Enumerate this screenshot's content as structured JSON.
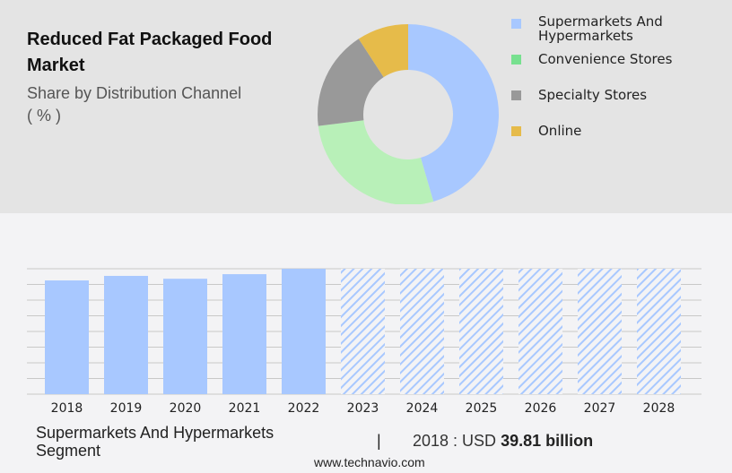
{
  "chart_data": [
    {
      "type": "pie",
      "title": "Reduced Fat Packaged Food Market",
      "subtitle": "Share by Distribution Channel",
      "unit": "( % )",
      "labels": [
        "Supermarkets And Hypermarkets",
        "Convenience Stores",
        "Specialty Stores",
        "Online"
      ],
      "values": [
        45.5,
        27.5,
        17.8,
        9.2
      ],
      "colors": [
        "#a8c8ff",
        "#b8f0b8",
        "#999999",
        "#e6bb4a"
      ],
      "legend_colors": [
        "#a8c8ff",
        "#77e08f",
        "#999999",
        "#e6bb4a"
      ]
    },
    {
      "type": "bar",
      "categories": [
        "2018",
        "2019",
        "2020",
        "2021",
        "2022",
        "2023",
        "2024",
        "2025",
        "2026",
        "2027",
        "2028"
      ],
      "values": [
        39.81,
        41.4,
        40.4,
        42.0,
        43.9,
        null,
        null,
        null,
        null,
        null,
        null
      ],
      "forecast": [
        false,
        false,
        false,
        false,
        false,
        true,
        true,
        true,
        true,
        true,
        true
      ],
      "ylim": [
        0,
        43.9
      ],
      "grid": true,
      "color": "#a8c8ff"
    }
  ],
  "segment": {
    "line1": "Supermarkets And Hypermarkets",
    "line2": "Segment"
  },
  "separator": "|",
  "highlight": {
    "prefix": "2018 : USD",
    "value": "39.81 billion"
  },
  "footer": "www.technavio.com"
}
